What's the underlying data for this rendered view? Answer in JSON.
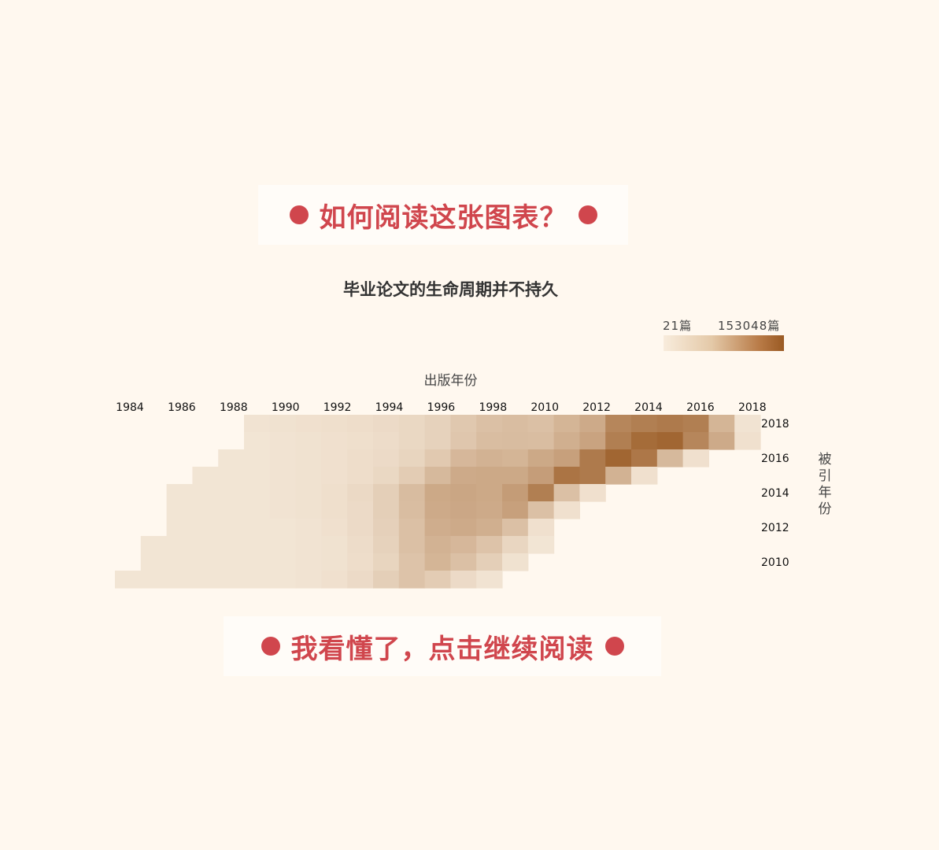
{
  "banner_top": {
    "label": "如何阅读这张图表？"
  },
  "banner_bottom": {
    "label": "我看懂了，点击继续阅读"
  },
  "chart_data": {
    "type": "heatmap",
    "title": "毕业论文的生命周期并不持久",
    "xlabel": "出版年份",
    "ylabel": "被引年份",
    "x_tick_labels": [
      "1984",
      "1986",
      "1988",
      "1990",
      "1992",
      "1994",
      "1996",
      "1998",
      "2010",
      "2012",
      "2014",
      "2016",
      "2018"
    ],
    "y_tick_labels": [
      "2018",
      "2016",
      "2014",
      "2012",
      "2010"
    ],
    "legend": {
      "min_label": "21篇",
      "max_label": "153048篇",
      "min_value": 21,
      "max_value": 153048
    },
    "rows": [
      {
        "y": "2018",
        "start": 5,
        "intensities": [
          0.06,
          0.07,
          0.08,
          0.09,
          0.1,
          0.12,
          0.14,
          0.18,
          0.25,
          0.3,
          0.32,
          0.3,
          0.38,
          0.45,
          0.7,
          0.75,
          0.78,
          0.75,
          0.38,
          0.06
        ]
      },
      {
        "y": "2017",
        "start": 5,
        "intensities": [
          0.05,
          0.06,
          0.07,
          0.08,
          0.09,
          0.11,
          0.14,
          0.18,
          0.26,
          0.32,
          0.33,
          0.32,
          0.42,
          0.5,
          0.75,
          0.88,
          0.92,
          0.7,
          0.45,
          0.08
        ]
      },
      {
        "y": "2016",
        "start": 4,
        "intensities": [
          0.05,
          0.05,
          0.06,
          0.07,
          0.08,
          0.1,
          0.12,
          0.16,
          0.24,
          0.36,
          0.4,
          0.38,
          0.46,
          0.52,
          0.78,
          0.92,
          0.8,
          0.35,
          0.08
        ]
      },
      {
        "y": "2015",
        "start": 3,
        "intensities": [
          0.05,
          0.05,
          0.05,
          0.06,
          0.07,
          0.08,
          0.1,
          0.14,
          0.22,
          0.35,
          0.45,
          0.46,
          0.46,
          0.54,
          0.82,
          0.78,
          0.4,
          0.08
        ]
      },
      {
        "y": "2014",
        "start": 2,
        "intensities": [
          0.05,
          0.05,
          0.05,
          0.05,
          0.06,
          0.07,
          0.09,
          0.13,
          0.2,
          0.33,
          0.46,
          0.48,
          0.46,
          0.55,
          0.75,
          0.3,
          0.08
        ]
      },
      {
        "y": "2013",
        "start": 2,
        "intensities": [
          0.05,
          0.05,
          0.05,
          0.05,
          0.06,
          0.07,
          0.09,
          0.12,
          0.2,
          0.32,
          0.45,
          0.47,
          0.45,
          0.52,
          0.3,
          0.08
        ]
      },
      {
        "y": "2012",
        "start": 2,
        "intensities": [
          0.05,
          0.05,
          0.05,
          0.05,
          0.05,
          0.06,
          0.08,
          0.12,
          0.19,
          0.3,
          0.43,
          0.45,
          0.42,
          0.3,
          0.08
        ]
      },
      {
        "y": "2011",
        "start": 1,
        "intensities": [
          0.05,
          0.05,
          0.05,
          0.05,
          0.05,
          0.05,
          0.06,
          0.07,
          0.11,
          0.18,
          0.3,
          0.4,
          0.36,
          0.28,
          0.15,
          0.05
        ]
      },
      {
        "y": "2010",
        "start": 1,
        "intensities": [
          0.05,
          0.05,
          0.05,
          0.05,
          0.05,
          0.05,
          0.06,
          0.07,
          0.1,
          0.16,
          0.28,
          0.38,
          0.3,
          0.2,
          0.07
        ]
      },
      {
        "y": "2009",
        "start": 0,
        "intensities": [
          0.05,
          0.05,
          0.05,
          0.05,
          0.05,
          0.05,
          0.05,
          0.06,
          0.08,
          0.12,
          0.2,
          0.28,
          0.22,
          0.12,
          0.06
        ]
      }
    ],
    "color_low": "#f7ecdd",
    "color_high": "#9a5a23"
  },
  "colors": {
    "accent": "#d0464d",
    "background": "#fff8ef"
  }
}
